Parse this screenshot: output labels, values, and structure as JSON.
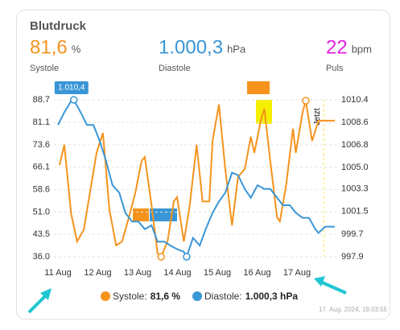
{
  "chart_data": {
    "type": "line",
    "title": "Blutdruck",
    "stats": [
      {
        "value": "81,6",
        "unit": "%",
        "label": "Systole",
        "color": "#f5931d"
      },
      {
        "value": "1.000,3",
        "unit": "hPa",
        "label": "Diastole",
        "color": "#3a96d6"
      },
      {
        "value": "22",
        "unit": "bpm",
        "label": "Puls",
        "color": "#e51ee0"
      }
    ],
    "xlim": [
      10.9,
      18
    ],
    "xticks": [
      {
        "value": 11,
        "label": "11 Aug"
      },
      {
        "value": 12,
        "label": "12 Aug"
      },
      {
        "value": 13,
        "label": "13 Aug"
      },
      {
        "value": 14,
        "label": "14 Aug"
      },
      {
        "value": 15,
        "label": "15 Aug"
      },
      {
        "value": 16,
        "label": "16 Aug"
      },
      {
        "value": 17,
        "label": "17 Aug"
      }
    ],
    "ylim": [
      36,
      88.7
    ],
    "yticks": [
      {
        "value": 36,
        "label": "36.0"
      },
      43.5,
      {
        "value": 51,
        "label": "51.0"
      },
      58.6,
      66.1,
      73.6,
      81.1,
      88.7
    ],
    "y2lim": [
      997.9,
      1010.4
    ],
    "y2ticks": [
      997.9,
      999.7,
      1001.5,
      1003.3,
      {
        "value": 1005,
        "label": "1005.0"
      },
      1006.8,
      1008.6,
      1010.4
    ],
    "grid": true,
    "series": [
      {
        "name": "Systole",
        "color": "#f5931d",
        "x": [
          11.04,
          11.16,
          11.33,
          11.48,
          11.65,
          11.8,
          11.97,
          12.13,
          12.29,
          12.46,
          12.61,
          12.78,
          12.94,
          13.1,
          13.18,
          13.35,
          13.5,
          13.59,
          13.75,
          13.91,
          13.99,
          14.16,
          14.31,
          14.48,
          14.63,
          14.8,
          14.88,
          15.04,
          15.2,
          15.37,
          15.52,
          15.69,
          15.84,
          15.93,
          16.09,
          16.18,
          16.33,
          16.5,
          16.57,
          16.73,
          16.9,
          16.97,
          17.14,
          17.22,
          17.38,
          17.54,
          17.71,
          17.95
        ],
        "values": [
          66.8,
          73.6,
          50.6,
          41.1,
          45.2,
          57.3,
          70.9,
          77.6,
          51.9,
          39.8,
          41.1,
          49.2,
          57.3,
          68.2,
          69.5,
          53.3,
          37.1,
          36.0,
          41.1,
          54.6,
          56.0,
          41.1,
          53.3,
          73.6,
          54.6,
          54.6,
          74.9,
          87.1,
          65.5,
          46.5,
          62.8,
          65.5,
          76.3,
          70.9,
          81.7,
          85.7,
          68.2,
          49.2,
          47.9,
          60.1,
          79.0,
          70.9,
          84.4,
          88.4,
          74.9,
          81.7,
          81.7,
          81.7
        ]
      },
      {
        "name": "Diastole",
        "color": "#3a96d6",
        "axis": "y2",
        "max_label": "1.010,4",
        "x": [
          11.0,
          11.16,
          11.33,
          11.4,
          11.57,
          11.73,
          11.89,
          12.05,
          12.21,
          12.37,
          12.54,
          12.69,
          12.86,
          13.02,
          13.18,
          13.35,
          13.5,
          13.67,
          13.82,
          13.99,
          14.16,
          14.23,
          14.39,
          14.56,
          14.71,
          14.88,
          15.04,
          15.2,
          15.37,
          15.52,
          15.69,
          15.84,
          16.01,
          16.18,
          16.33,
          16.5,
          16.65,
          16.82,
          16.97,
          17.14,
          17.3,
          17.46,
          17.54,
          17.71,
          17.95
        ],
        "values": [
          1008.4,
          1009.4,
          1010.3,
          1010.4,
          1009.4,
          1008.4,
          1008.4,
          1007.1,
          1005.5,
          1003.6,
          1003.0,
          1001.4,
          1000.7,
          1000.7,
          1000.1,
          1000.4,
          999.1,
          999.1,
          998.8,
          998.5,
          998.3,
          997.9,
          999.4,
          998.8,
          1000.1,
          1001.4,
          1002.3,
          1003.0,
          1004.6,
          1004.4,
          1003.3,
          1002.6,
          1003.6,
          1003.3,
          1003.3,
          1002.6,
          1002.0,
          1002.0,
          1001.4,
          1001.0,
          1001.0,
          1000.1,
          999.8,
          1000.3,
          1000.3
        ]
      }
    ],
    "annotation": {
      "text": "Jetzt",
      "x": 17.67
    },
    "legend": [
      {
        "label": "Systole:",
        "value": "81,6 %"
      },
      {
        "label": "Diastole:",
        "value": "1.000,3 hPa"
      }
    ],
    "timestamp": "17. Aug. 2024, 18:03:55"
  }
}
